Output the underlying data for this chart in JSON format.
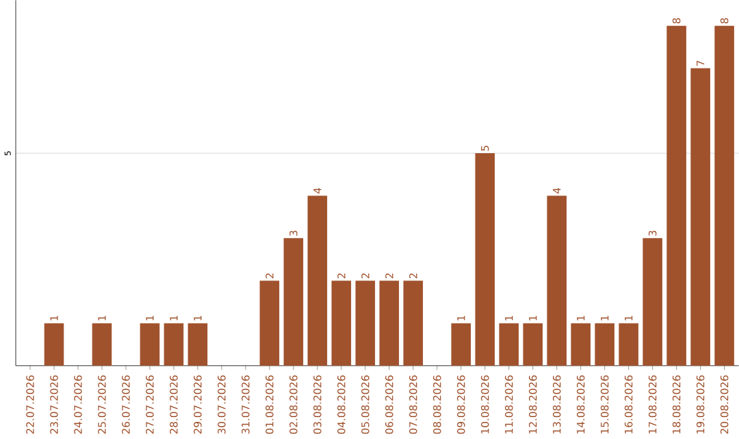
{
  "chart_data": {
    "type": "bar",
    "categories": [
      "22.07.2026",
      "23.07.2026",
      "24.07.2026",
      "25.07.2026",
      "26.07.2026",
      "27.07.2026",
      "28.07.2026",
      "29.07.2026",
      "30.07.2026",
      "31.07.2026",
      "01.08.2026",
      "02.08.2026",
      "03.08.2026",
      "04.08.2026",
      "05.08.2026",
      "06.08.2026",
      "07.08.2026",
      "08.08.2026",
      "09.08.2026",
      "10.08.2026",
      "11.08.2026",
      "12.08.2026",
      "13.08.2026",
      "14.08.2026",
      "15.08.2026",
      "16.08.2026",
      "17.08.2026",
      "18.08.2026",
      "19.08.2026",
      "20.08.2026"
    ],
    "values": [
      0,
      1,
      0,
      1,
      0,
      1,
      1,
      1,
      0,
      0,
      2,
      3,
      4,
      2,
      2,
      2,
      2,
      0,
      1,
      5,
      1,
      1,
      4,
      1,
      1,
      1,
      3,
      8,
      7,
      8
    ],
    "value_labels": [
      null,
      "1",
      null,
      "1",
      null,
      "1",
      "1",
      "1",
      null,
      null,
      "2",
      "3",
      "4",
      "2",
      "2",
      "2",
      "2",
      null,
      "1",
      "5",
      "1",
      "1",
      "4",
      "1",
      "1",
      "1",
      "3",
      "8",
      "7",
      "8"
    ],
    "color": "#a0522d",
    "ylim": [
      0,
      8.6
    ],
    "yticks": [
      5
    ],
    "grid": "y"
  }
}
